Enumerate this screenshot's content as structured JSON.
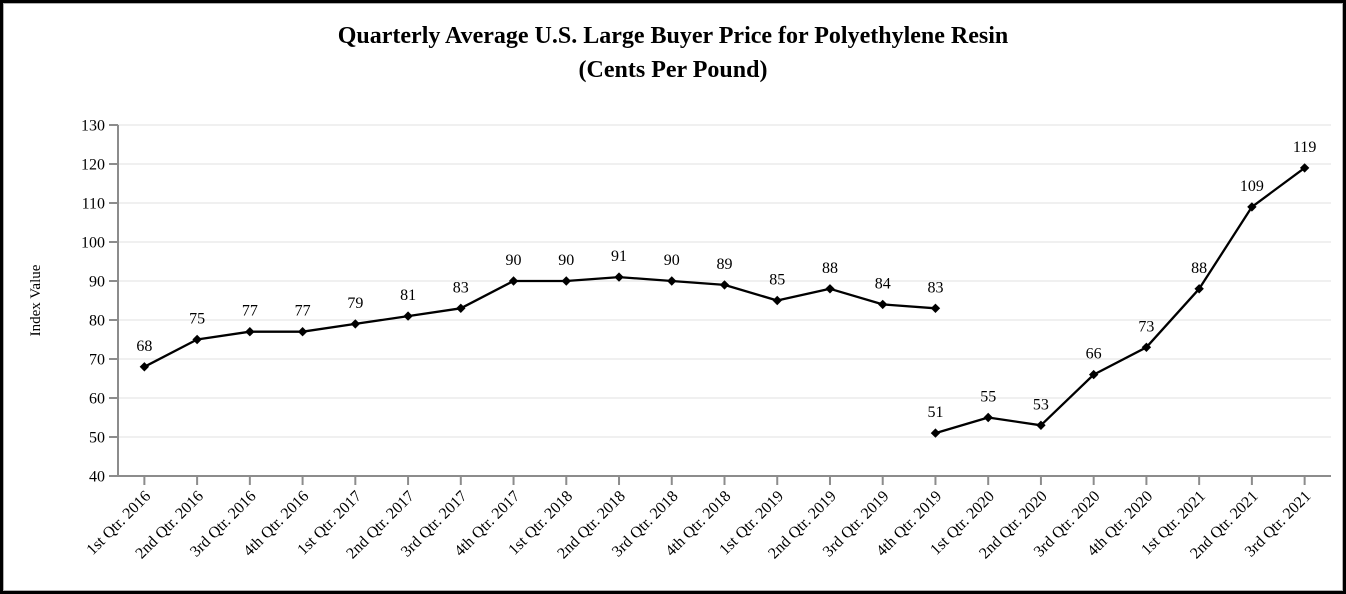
{
  "title": {
    "line1": "Quarterly Average U.S. Large Buyer Price for Polyethylene Resin",
    "line2": "(Cents Per Pound)"
  },
  "chart_data": {
    "type": "line",
    "title": "Quarterly Average U.S. Large Buyer Price for Polyethylene Resin (Cents Per Pound)",
    "xlabel": "",
    "ylabel": "Index Value",
    "ylim": [
      40,
      130
    ],
    "ytick_step": 10,
    "yticks": [
      40,
      50,
      60,
      70,
      80,
      90,
      100,
      110,
      120,
      130
    ],
    "grid": true,
    "legend_position": "none",
    "marker": "diamond",
    "data_labels": true,
    "x_tick_rotation": 45,
    "categories": [
      "1st Qtr. 2016",
      "2nd Qtr. 2016",
      "3rd Qtr. 2016",
      "4th Qtr. 2016",
      "1st Qtr. 2017",
      "2nd Qtr. 2017",
      "3rd Qtr. 2017",
      "4th Qtr. 2017",
      "1st Qtr. 2018",
      "2nd Qtr. 2018",
      "3rd Qtr. 2018",
      "4th Qtr. 2018",
      "1st Qtr. 2019",
      "2nd Qtr. 2019",
      "3rd Qtr. 2019",
      "4th Qtr. 2019",
      "1st Qtr. 2020",
      "2nd Qtr. 2020",
      "3rd Qtr. 2020",
      "4th Qtr. 2020",
      "1st Qtr. 2021",
      "2nd Qtr. 2021",
      "3rd Qtr. 2021"
    ],
    "series": [
      {
        "name": "segment-1",
        "start_index": 0,
        "values": [
          68,
          75,
          77,
          77,
          79,
          81,
          83,
          90,
          90,
          91,
          90,
          89,
          85,
          88,
          84,
          83
        ]
      },
      {
        "name": "segment-2",
        "start_index": 15,
        "values": [
          51,
          55,
          53,
          66,
          73,
          88,
          109,
          119
        ]
      }
    ],
    "series_break_note": "line is discontinuous at 4th Qtr. 2019: first segment ends at 83, second segment begins at 51 in the same quarter",
    "colors": {
      "line": "#000000",
      "marker": "#000000",
      "grid": "#E2E2E2",
      "axis": "#8C8C8C",
      "text": "#000000",
      "border": "#000000",
      "background": "#FFFFFF"
    }
  }
}
